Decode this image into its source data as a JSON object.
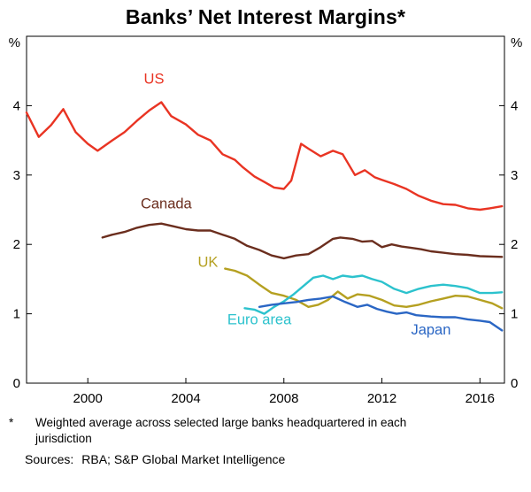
{
  "title": "Banks’ Net Interest Margins*",
  "chart_data": {
    "type": "line",
    "title": "Banks’ Net Interest Margins*",
    "unit": "%",
    "xlim": [
      1997.5,
      2017
    ],
    "ylim": [
      0,
      5
    ],
    "xticks": [
      2000,
      2004,
      2008,
      2012,
      2016
    ],
    "yticks": [
      0,
      1,
      2,
      3,
      4
    ],
    "grid": false,
    "legend_position": "inline-labels",
    "series": [
      {
        "id": "us",
        "name": "US",
        "color": "#e93423",
        "label": {
          "x": 2002.7,
          "y": 4.32
        },
        "points": [
          [
            1997.5,
            3.9
          ],
          [
            1998,
            3.55
          ],
          [
            1998.5,
            3.72
          ],
          [
            1999,
            3.95
          ],
          [
            1999.5,
            3.62
          ],
          [
            2000,
            3.45
          ],
          [
            2000.4,
            3.35
          ],
          [
            2001,
            3.5
          ],
          [
            2001.5,
            3.62
          ],
          [
            2002,
            3.78
          ],
          [
            2002.5,
            3.93
          ],
          [
            2003,
            4.05
          ],
          [
            2003.4,
            3.85
          ],
          [
            2004,
            3.73
          ],
          [
            2004.5,
            3.58
          ],
          [
            2005,
            3.5
          ],
          [
            2005.5,
            3.3
          ],
          [
            2006,
            3.22
          ],
          [
            2006.3,
            3.12
          ],
          [
            2006.8,
            2.98
          ],
          [
            2007.2,
            2.9
          ],
          [
            2007.6,
            2.82
          ],
          [
            2008,
            2.8
          ],
          [
            2008.3,
            2.92
          ],
          [
            2008.7,
            3.45
          ],
          [
            2009,
            3.38
          ],
          [
            2009.5,
            3.27
          ],
          [
            2010,
            3.35
          ],
          [
            2010.4,
            3.3
          ],
          [
            2010.9,
            3.0
          ],
          [
            2011.3,
            3.07
          ],
          [
            2011.7,
            2.97
          ],
          [
            2012,
            2.93
          ],
          [
            2012.5,
            2.87
          ],
          [
            2013,
            2.8
          ],
          [
            2013.5,
            2.7
          ],
          [
            2014,
            2.63
          ],
          [
            2014.5,
            2.58
          ],
          [
            2015,
            2.57
          ],
          [
            2015.5,
            2.52
          ],
          [
            2016,
            2.5
          ],
          [
            2016.4,
            2.52
          ],
          [
            2016.9,
            2.55
          ]
        ]
      },
      {
        "id": "canada",
        "name": "Canada",
        "color": "#6b2e1e",
        "label": {
          "x": 2003.2,
          "y": 2.52
        },
        "points": [
          [
            2000.6,
            2.1
          ],
          [
            2001,
            2.14
          ],
          [
            2001.5,
            2.18
          ],
          [
            2002,
            2.24
          ],
          [
            2002.5,
            2.28
          ],
          [
            2003,
            2.3
          ],
          [
            2003.5,
            2.26
          ],
          [
            2004,
            2.22
          ],
          [
            2004.5,
            2.2
          ],
          [
            2005,
            2.2
          ],
          [
            2005.5,
            2.14
          ],
          [
            2006,
            2.08
          ],
          [
            2006.5,
            1.98
          ],
          [
            2007,
            1.92
          ],
          [
            2007.5,
            1.84
          ],
          [
            2008,
            1.8
          ],
          [
            2008.5,
            1.84
          ],
          [
            2009,
            1.86
          ],
          [
            2009.5,
            1.96
          ],
          [
            2010,
            2.08
          ],
          [
            2010.3,
            2.1
          ],
          [
            2010.8,
            2.08
          ],
          [
            2011.2,
            2.04
          ],
          [
            2011.6,
            2.05
          ],
          [
            2012,
            1.96
          ],
          [
            2012.4,
            2.0
          ],
          [
            2012.8,
            1.97
          ],
          [
            2013.2,
            1.95
          ],
          [
            2013.6,
            1.93
          ],
          [
            2014,
            1.9
          ],
          [
            2014.5,
            1.88
          ],
          [
            2015,
            1.86
          ],
          [
            2015.5,
            1.85
          ],
          [
            2016,
            1.83
          ],
          [
            2016.9,
            1.82
          ]
        ]
      },
      {
        "id": "uk",
        "name": "UK",
        "color": "#b5a021",
        "label": {
          "x": 2004.9,
          "y": 1.68
        },
        "points": [
          [
            2005.6,
            1.65
          ],
          [
            2006,
            1.62
          ],
          [
            2006.5,
            1.55
          ],
          [
            2007,
            1.42
          ],
          [
            2007.5,
            1.3
          ],
          [
            2008,
            1.26
          ],
          [
            2008.5,
            1.2
          ],
          [
            2009,
            1.1
          ],
          [
            2009.4,
            1.13
          ],
          [
            2009.8,
            1.2
          ],
          [
            2010.2,
            1.32
          ],
          [
            2010.6,
            1.22
          ],
          [
            2011,
            1.28
          ],
          [
            2011.5,
            1.26
          ],
          [
            2012,
            1.2
          ],
          [
            2012.5,
            1.12
          ],
          [
            2013,
            1.1
          ],
          [
            2013.5,
            1.13
          ],
          [
            2014,
            1.18
          ],
          [
            2014.5,
            1.22
          ],
          [
            2015,
            1.26
          ],
          [
            2015.5,
            1.25
          ],
          [
            2016,
            1.2
          ],
          [
            2016.5,
            1.15
          ],
          [
            2016.9,
            1.08
          ]
        ]
      },
      {
        "id": "euro-area",
        "name": "Euro area",
        "color": "#2cc2cd",
        "label": {
          "x": 2007.0,
          "y": 0.85
        },
        "points": [
          [
            2006.4,
            1.08
          ],
          [
            2006.8,
            1.06
          ],
          [
            2007.2,
            1.0
          ],
          [
            2007.6,
            1.1
          ],
          [
            2008,
            1.18
          ],
          [
            2008.4,
            1.28
          ],
          [
            2008.8,
            1.4
          ],
          [
            2009.2,
            1.52
          ],
          [
            2009.6,
            1.55
          ],
          [
            2010,
            1.5
          ],
          [
            2010.4,
            1.55
          ],
          [
            2010.8,
            1.53
          ],
          [
            2011.2,
            1.55
          ],
          [
            2011.6,
            1.5
          ],
          [
            2012,
            1.46
          ],
          [
            2012.5,
            1.36
          ],
          [
            2013,
            1.3
          ],
          [
            2013.5,
            1.36
          ],
          [
            2014,
            1.4
          ],
          [
            2014.5,
            1.42
          ],
          [
            2015,
            1.4
          ],
          [
            2015.5,
            1.37
          ],
          [
            2016,
            1.3
          ],
          [
            2016.5,
            1.3
          ],
          [
            2016.9,
            1.31
          ]
        ]
      },
      {
        "id": "japan",
        "name": "Japan",
        "color": "#2a66c4",
        "label": {
          "x": 2014.0,
          "y": 0.7
        },
        "points": [
          [
            2007,
            1.1
          ],
          [
            2007.5,
            1.13
          ],
          [
            2008,
            1.15
          ],
          [
            2008.5,
            1.17
          ],
          [
            2009,
            1.2
          ],
          [
            2009.5,
            1.22
          ],
          [
            2010,
            1.25
          ],
          [
            2010.5,
            1.17
          ],
          [
            2011,
            1.1
          ],
          [
            2011.4,
            1.13
          ],
          [
            2011.8,
            1.07
          ],
          [
            2012.2,
            1.03
          ],
          [
            2012.6,
            1.0
          ],
          [
            2013,
            1.02
          ],
          [
            2013.4,
            0.98
          ],
          [
            2014,
            0.96
          ],
          [
            2014.5,
            0.95
          ],
          [
            2015,
            0.95
          ],
          [
            2015.5,
            0.92
          ],
          [
            2016,
            0.9
          ],
          [
            2016.4,
            0.88
          ],
          [
            2016.9,
            0.76
          ]
        ]
      }
    ]
  },
  "footnote": {
    "marker": "*",
    "text": "Weighted average across selected large banks headquartered in each jurisdiction"
  },
  "sources": {
    "label": "Sources:",
    "text": "RBA; S&P Global Market Intelligence"
  }
}
